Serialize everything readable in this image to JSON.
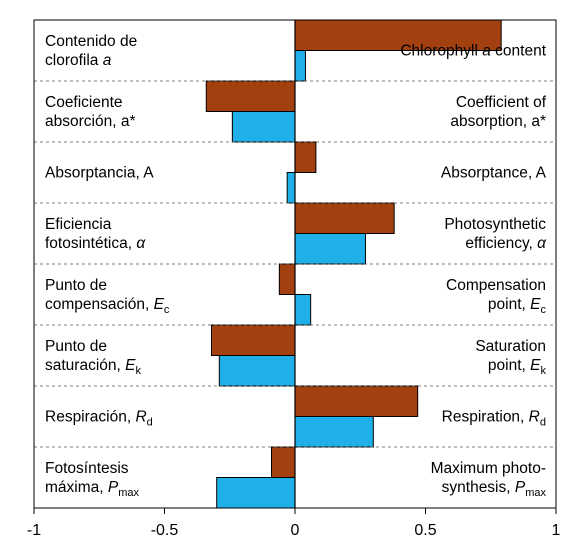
{
  "chart_data": {
    "type": "bar",
    "orientation": "horizontal",
    "xlim": [
      -1,
      1
    ],
    "x_ticks": [
      "-1",
      "-0.5",
      "0",
      "0.5",
      "1"
    ],
    "x_tick_values": [
      -1,
      -0.5,
      0,
      0.5,
      1
    ],
    "grid": "horizontal dashed separators between categories",
    "categories": [
      {
        "left": [
          {
            "t": "Contenido de"
          },
          {
            "t": "clorofila "
          },
          {
            "t": "a",
            "i": true
          }
        ],
        "right": [
          {
            "t": "Chlorophyll "
          },
          {
            "t": "a",
            "i": true
          },
          {
            "t": " content"
          }
        ]
      },
      {
        "left": [
          {
            "t": "Coeficiente"
          },
          {
            "t": "absorción, a*"
          }
        ],
        "right": [
          {
            "t": "Coefficient of"
          },
          {
            "t": "absorption, a*"
          }
        ]
      },
      {
        "left": [
          {
            "t": "Absorptancia, A"
          }
        ],
        "right": [
          {
            "t": "Absorptance, A"
          }
        ]
      },
      {
        "left": [
          {
            "t": "Eficiencia"
          },
          {
            "t": "fotosintética, "
          },
          {
            "t": "α",
            "i": true
          }
        ],
        "right": [
          {
            "t": "Photosynthetic"
          },
          {
            "t": "efficiency, "
          },
          {
            "t": "α",
            "i": true
          }
        ]
      },
      {
        "left": [
          {
            "t": "Punto de"
          },
          {
            "t": "compensación, "
          },
          {
            "t": "E",
            "i": true
          },
          {
            "t": "c",
            "sub": true
          }
        ],
        "right": [
          {
            "t": "Compensation"
          },
          {
            "t": "point, "
          },
          {
            "t": "E",
            "i": true
          },
          {
            "t": "c",
            "sub": true
          }
        ]
      },
      {
        "left": [
          {
            "t": "Punto de"
          },
          {
            "t": "saturación, "
          },
          {
            "t": "E",
            "i": true
          },
          {
            "t": "k",
            "sub": true
          }
        ],
        "right": [
          {
            "t": "Saturation"
          },
          {
            "t": "point, "
          },
          {
            "t": "E",
            "i": true
          },
          {
            "t": "k",
            "sub": true
          }
        ]
      },
      {
        "left": [
          {
            "t": "Respiración, "
          },
          {
            "t": "R",
            "i": true
          },
          {
            "t": "d",
            "sub": true
          }
        ],
        "right": [
          {
            "t": "Respiration, "
          },
          {
            "t": "R",
            "i": true
          },
          {
            "t": "d",
            "sub": true
          }
        ]
      },
      {
        "left": [
          {
            "t": "Fotosíntesis"
          },
          {
            "t": "máxima, "
          },
          {
            "t": "P",
            "i": true
          },
          {
            "t": "max",
            "sub": true
          }
        ],
        "right": [
          {
            "t": "Maximum photo-"
          },
          {
            "t": "synthesis, "
          },
          {
            "t": "P",
            "i": true
          },
          {
            "t": "max",
            "sub": true
          }
        ]
      }
    ],
    "series": [
      {
        "color": "#a2410f",
        "values": [
          0.79,
          -0.34,
          0.08,
          0.38,
          -0.06,
          -0.32,
          0.47,
          -0.09
        ]
      },
      {
        "color": "#1fb0ea",
        "values": [
          0.04,
          -0.24,
          -0.03,
          0.27,
          0.06,
          -0.29,
          0.3,
          -0.3
        ]
      }
    ]
  }
}
